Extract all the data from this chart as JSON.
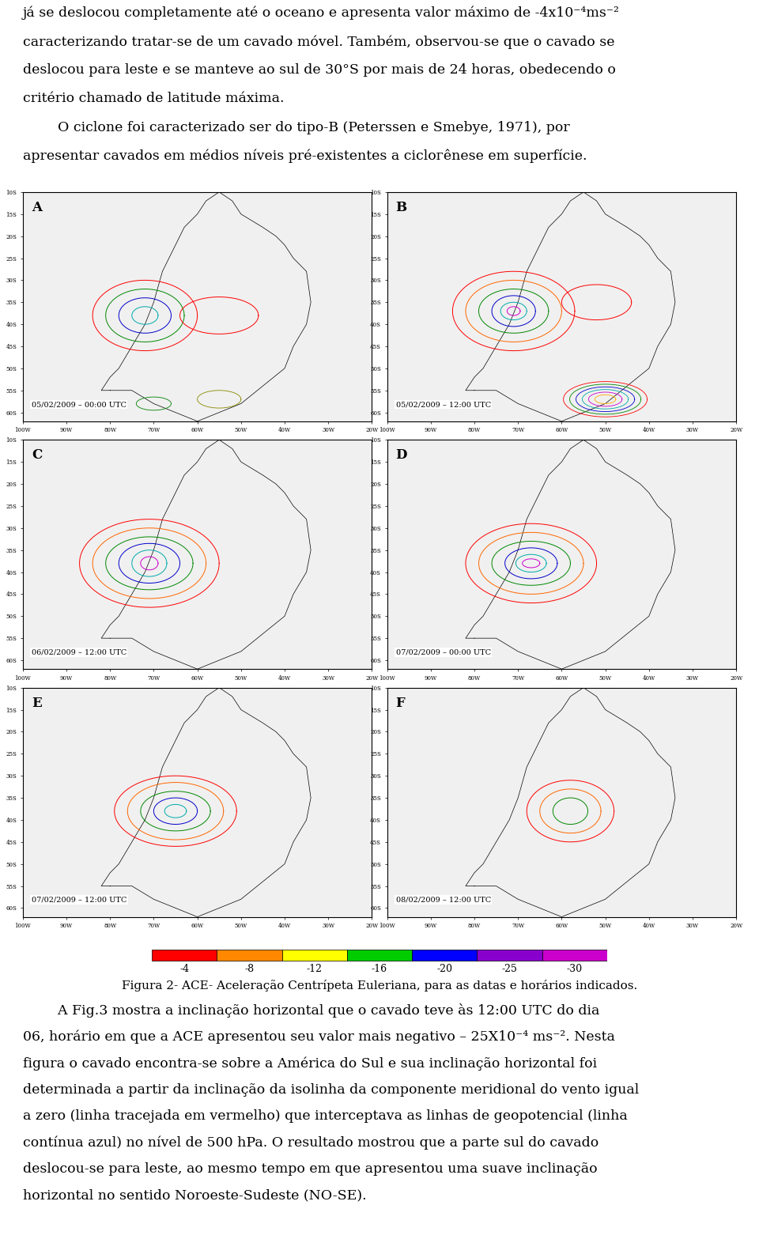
{
  "background_color": "#ffffff",
  "text_color": "#000000",
  "fontsize_body": 12,
  "fontsize_caption": 11,
  "paragraph1": "já se deslocou completamente até o oceano e apresenta valor máximo de -4x10⁻⁴ms⁻²",
  "paragraph1b": "caracterizando tratar-se de um cavado móvel. Também, observou-se que o cavado se",
  "paragraph1c": "deslocou para leste e se manteve ao sul de 30°S por mais de 24 horas, obedecendo o",
  "paragraph1d": "critério chamado de latitude máxima.",
  "paragraph2": "        O ciclone foi caracterizado ser do tipo-B (Peterssen e Smebye, 1971), por",
  "paragraph2b": "apresentar cavados em médios níveis pré-existentes a ciclогênese em superfície.",
  "map_labels": [
    "A",
    "B",
    "C",
    "D",
    "E",
    "F"
  ],
  "map_timestamps": [
    "05/02/2009 – 00:00 UTC",
    "05/02/2009 – 12:00 UTC",
    "06/02/2009 – 12:00 UTC",
    "07/02/2009 – 00:00 UTC",
    "07/02/2009 – 12:00 UTC",
    "08/02/2009 – 12:00 UTC"
  ],
  "colorbar_colors": [
    "#ff0000",
    "#ff6600",
    "#ffcc00",
    "#ffff00",
    "#00cc00",
    "#0000ff",
    "#9900cc"
  ],
  "colorbar_labels": [
    "-4",
    "-8",
    "-12",
    "-16",
    "-20",
    "-25",
    "-30"
  ],
  "caption": "Figura 2- ACE- Aceleração Centrípeta Euleriana, para as datas e horários indicados.",
  "paragraph3": "        A Fig.3 mostra a inclinação horizontal que o cavado teve às 12:00 UTC do dia",
  "paragraph3b": "06, horário em que a ACE apresentou seu valor mais negativo – 25X10⁻⁴ ms⁻². Nesta",
  "paragraph3c": "figura o cavado encontra-se sobre a América do Sul e sua inclinação horizontal foi",
  "paragraph3d": "determinada a partir da inclinação da isolinha da componente meridional do vento igual",
  "paragraph3e": "a zero (linha tracejada em vermelho) que interceptava as linhas de geopotencial (linha",
  "paragraph3f": "contínua azul) no nível de 500 hPa. O resultado mostrou que a parte sul do cavado",
  "paragraph3g": "deslocou-se para leste, ao mesmo tempo em que apresentou uma suave inclinação",
  "paragraph3h": "horizontal no sentido Noroeste-Sudeste (NO-SE)."
}
